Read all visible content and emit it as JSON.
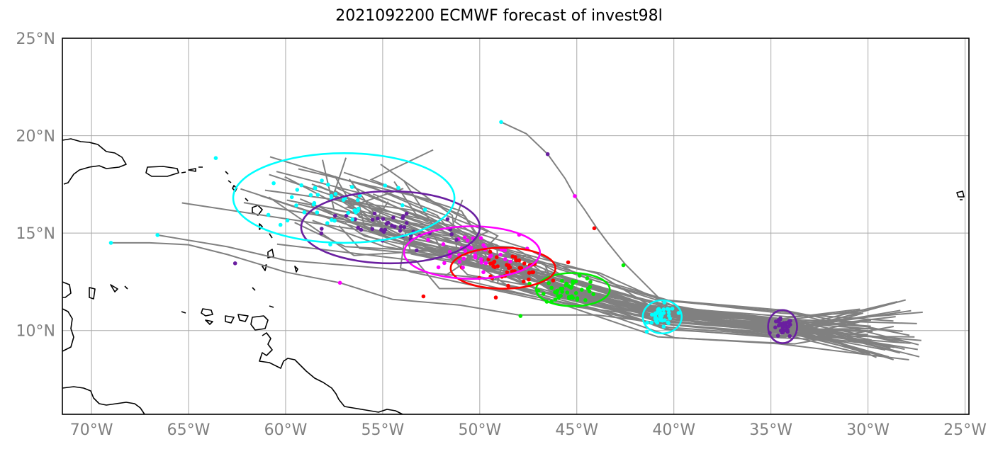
{
  "title": "2021092200 ECMWF forecast of invest98l",
  "map": {
    "lon_range": [
      -71.5,
      -24.8
    ],
    "lat_range": [
      5.7,
      25.0
    ],
    "projection": "PlateCarree",
    "gridlines": true,
    "grid_color": "#a9a9a9",
    "tick_label_color": "#808080",
    "lon_ticks": [
      {
        "value": -70,
        "label": "70°W"
      },
      {
        "value": -65,
        "label": "65°W"
      },
      {
        "value": -60,
        "label": "60°W"
      },
      {
        "value": -55,
        "label": "55°W"
      },
      {
        "value": -50,
        "label": "50°W"
      },
      {
        "value": -45,
        "label": "45°W"
      },
      {
        "value": -40,
        "label": "40°W"
      },
      {
        "value": -35,
        "label": "35°W"
      },
      {
        "value": -30,
        "label": "30°W"
      },
      {
        "value": -25,
        "label": "25°W"
      }
    ],
    "lat_ticks": [
      {
        "value": 10,
        "label": "10°N"
      },
      {
        "value": 15,
        "label": "15°N"
      },
      {
        "value": 20,
        "label": "20°N"
      },
      {
        "value": 25,
        "label": "25°N"
      }
    ]
  },
  "track_color": "#808080",
  "ellipses": [
    {
      "color": "#6a1fa0",
      "center": [
        -34.4,
        10.2
      ],
      "radius": [
        0.75,
        0.85
      ]
    },
    {
      "color": "#00ffff",
      "center": [
        -40.6,
        10.7
      ],
      "radius": [
        1.0,
        0.85
      ]
    },
    {
      "color": "#00ee00",
      "center": [
        -45.2,
        12.1
      ],
      "radius": [
        1.9,
        0.85
      ]
    },
    {
      "color": "#ff0000",
      "center": [
        -48.8,
        13.2
      ],
      "radius": [
        2.7,
        1.05
      ]
    },
    {
      "color": "#ff00ff",
      "center": [
        -50.4,
        14.0
      ],
      "radius": [
        3.5,
        1.35
      ]
    },
    {
      "color": "#6a1fa0",
      "center": [
        -54.6,
        15.3
      ],
      "radius": [
        4.6,
        1.85
      ]
    },
    {
      "color": "#00ffff",
      "center": [
        -57.0,
        16.8
      ],
      "radius": [
        5.7,
        2.3
      ]
    }
  ],
  "point_clusters": [
    {
      "color": "#6a1fa0",
      "center": [
        -34.4,
        10.1
      ],
      "spread": [
        0.5,
        0.5
      ],
      "count": 35
    },
    {
      "color": "#00ffff",
      "center": [
        -40.6,
        10.7
      ],
      "spread": [
        0.7,
        0.6
      ],
      "count": 40
    },
    {
      "color": "#00ee00",
      "center": [
        -45.3,
        12.1
      ],
      "spread": [
        1.5,
        0.6
      ],
      "count": 45
    },
    {
      "color": "#ff0000",
      "center": [
        -48.6,
        13.2
      ],
      "spread": [
        2.0,
        0.75
      ],
      "count": 45
    },
    {
      "color": "#ff00ff",
      "center": [
        -50.6,
        14.0
      ],
      "spread": [
        2.6,
        0.9
      ],
      "count": 40
    },
    {
      "color": "#6a1fa0",
      "center": [
        -54.5,
        15.2
      ],
      "spread": [
        3.5,
        1.2
      ],
      "count": 40
    },
    {
      "color": "#00ffff",
      "center": [
        -57.3,
        16.7
      ],
      "spread": [
        4.2,
        1.6
      ],
      "count": 40
    }
  ],
  "outlier_points": [
    {
      "color": "#00ffff",
      "lon": -69.0,
      "lat": 14.5
    },
    {
      "color": "#00ffff",
      "lon": -66.6,
      "lat": 14.9
    },
    {
      "color": "#00ffff",
      "lon": -63.6,
      "lat": 18.85
    },
    {
      "color": "#00ffff",
      "lon": -48.9,
      "lat": 20.7
    },
    {
      "color": "#6a1fa0",
      "lon": -62.6,
      "lat": 13.45
    },
    {
      "color": "#6a1fa0",
      "lon": -46.5,
      "lat": 19.05
    },
    {
      "color": "#ff00ff",
      "lon": -57.2,
      "lat": 12.45
    },
    {
      "color": "#ff00ff",
      "lon": -45.1,
      "lat": 16.9
    },
    {
      "color": "#ff0000",
      "lon": -52.9,
      "lat": 11.75
    },
    {
      "color": "#ff0000",
      "lon": -44.1,
      "lat": 15.25
    },
    {
      "color": "#00ee00",
      "lon": -47.9,
      "lat": 10.75
    },
    {
      "color": "#00ee00",
      "lon": -42.6,
      "lat": 13.35
    }
  ],
  "special_tracks": [
    [
      [
        -30.0,
        10.2
      ],
      [
        -33.0,
        10.4
      ],
      [
        -36.5,
        10.5
      ],
      [
        -40.0,
        10.9
      ],
      [
        -42.5,
        13.4
      ],
      [
        -43.4,
        14.5
      ],
      [
        -44.0,
        15.3
      ],
      [
        -44.6,
        16.2
      ],
      [
        -45.1,
        16.9
      ],
      [
        -45.6,
        17.8
      ],
      [
        -46.5,
        19.05
      ],
      [
        -47.6,
        20.1
      ],
      [
        -48.9,
        20.7
      ]
    ],
    [
      [
        -30.0,
        10.0
      ],
      [
        -35.0,
        10.1
      ],
      [
        -40.0,
        10.6
      ],
      [
        -45.0,
        11.2
      ],
      [
        -50.0,
        12.7
      ],
      [
        -55.0,
        13.2
      ],
      [
        -60.0,
        13.6
      ],
      [
        -63.0,
        14.3
      ],
      [
        -66.6,
        14.9
      ]
    ],
    [
      [
        -30.0,
        9.8
      ],
      [
        -35.0,
        9.9
      ],
      [
        -40.0,
        10.3
      ],
      [
        -44.0,
        10.8
      ],
      [
        -48.0,
        10.8
      ],
      [
        -51.0,
        11.3
      ],
      [
        -54.5,
        11.6
      ],
      [
        -57.2,
        12.45
      ],
      [
        -60.0,
        13.0
      ],
      [
        -63.0,
        13.9
      ],
      [
        -65.0,
        14.4
      ],
      [
        -67.0,
        14.5
      ],
      [
        -69.0,
        14.5
      ]
    ]
  ]
}
